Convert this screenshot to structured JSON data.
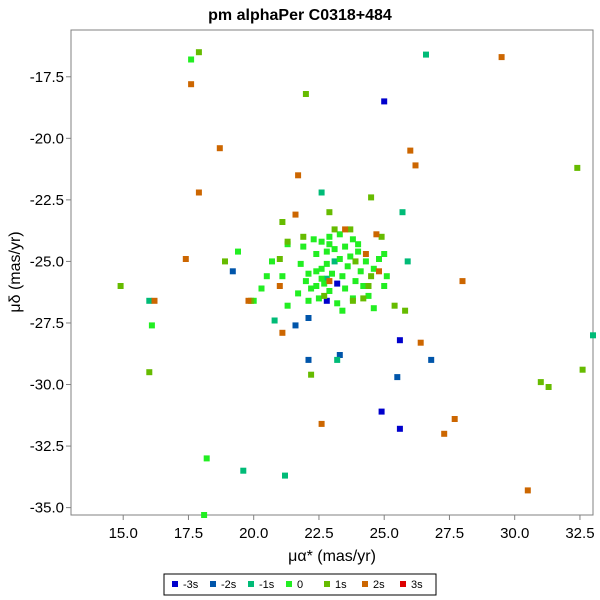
{
  "chart_data": {
    "type": "scatter",
    "title": "pm alphaPer  C0318+484",
    "xlabel": "μα* (mas/yr)",
    "ylabel": "μδ (mas/yr)",
    "xlim": [
      13.0,
      33.0
    ],
    "ylim": [
      -35.3,
      -15.6
    ],
    "xticks": [
      "15.0",
      "17.5",
      "20.0",
      "22.5",
      "25.0",
      "27.5",
      "30.0",
      "32.5"
    ],
    "xtick_values": [
      15.0,
      17.5,
      20.0,
      22.5,
      25.0,
      27.5,
      30.0,
      32.5
    ],
    "yticks": [
      "-17.5",
      "-20.0",
      "-22.5",
      "-25.0",
      "-27.5",
      "-30.0",
      "-32.5",
      "-35.0"
    ],
    "ytick_values": [
      -17.5,
      -20.0,
      -22.5,
      -25.0,
      -27.5,
      -30.0,
      -32.5,
      -35.0
    ],
    "grid": false,
    "legend_position": "bottom-center",
    "series": [
      {
        "name": "-3s",
        "color": "#0000cc",
        "points": [
          [
            25.0,
            -18.5
          ],
          [
            22.8,
            -26.6
          ],
          [
            23.2,
            -25.9
          ],
          [
            24.9,
            -31.1
          ],
          [
            25.6,
            -31.8
          ],
          [
            25.6,
            -28.2
          ]
        ]
      },
      {
        "name": "-2s",
        "color": "#0055aa",
        "points": [
          [
            19.2,
            -25.4
          ],
          [
            22.1,
            -27.3
          ],
          [
            22.1,
            -29.0
          ],
          [
            21.6,
            -27.6
          ],
          [
            23.3,
            -28.8
          ],
          [
            25.5,
            -29.7
          ],
          [
            26.8,
            -29.0
          ]
        ]
      },
      {
        "name": "-1s",
        "color": "#00bb77",
        "points": [
          [
            16.0,
            -26.6
          ],
          [
            19.6,
            -33.5
          ],
          [
            20.8,
            -27.4
          ],
          [
            21.2,
            -33.7
          ],
          [
            22.8,
            -25.7
          ],
          [
            22.6,
            -22.2
          ],
          [
            23.1,
            -25.0
          ],
          [
            25.7,
            -23.0
          ],
          [
            25.9,
            -25.0
          ],
          [
            26.6,
            -16.6
          ],
          [
            33.0,
            -28.0
          ],
          [
            23.2,
            -29.0
          ]
        ]
      },
      {
        "name": "0",
        "color": "#22ee22",
        "points": [
          [
            17.6,
            -16.8
          ],
          [
            16.1,
            -27.6
          ],
          [
            18.2,
            -33.0
          ],
          [
            18.1,
            -35.3
          ],
          [
            19.4,
            -24.6
          ],
          [
            20.0,
            -26.6
          ],
          [
            20.3,
            -26.1
          ],
          [
            20.5,
            -25.6
          ],
          [
            20.7,
            -25.0
          ],
          [
            21.3,
            -24.3
          ],
          [
            21.1,
            -25.6
          ],
          [
            21.3,
            -26.8
          ],
          [
            21.7,
            -26.3
          ],
          [
            21.8,
            -25.1
          ],
          [
            21.9,
            -24.4
          ],
          [
            22.0,
            -25.8
          ],
          [
            22.1,
            -25.5
          ],
          [
            22.1,
            -26.6
          ],
          [
            22.3,
            -24.1
          ],
          [
            22.4,
            -24.7
          ],
          [
            22.4,
            -25.4
          ],
          [
            22.4,
            -26.0
          ],
          [
            22.5,
            -26.5
          ],
          [
            22.6,
            -24.2
          ],
          [
            22.6,
            -25.3
          ],
          [
            22.7,
            -25.9
          ],
          [
            22.8,
            -24.6
          ],
          [
            22.8,
            -25.1
          ],
          [
            22.9,
            -26.2
          ],
          [
            22.9,
            -24.0
          ],
          [
            23.0,
            -25.5
          ],
          [
            23.1,
            -24.5
          ],
          [
            23.2,
            -26.7
          ],
          [
            23.3,
            -23.9
          ],
          [
            23.3,
            -24.9
          ],
          [
            23.4,
            -25.6
          ],
          [
            23.5,
            -26.1
          ],
          [
            23.5,
            -24.4
          ],
          [
            23.6,
            -25.2
          ],
          [
            23.7,
            -24.8
          ],
          [
            23.8,
            -26.5
          ],
          [
            23.9,
            -25.8
          ],
          [
            24.0,
            -24.3
          ],
          [
            24.1,
            -25.4
          ],
          [
            24.2,
            -26.0
          ],
          [
            24.3,
            -25.0
          ],
          [
            24.4,
            -26.4
          ],
          [
            24.6,
            -25.3
          ],
          [
            24.6,
            -26.9
          ],
          [
            24.8,
            -24.9
          ],
          [
            25.0,
            -26.0
          ],
          [
            25.1,
            -25.6
          ],
          [
            25.0,
            -24.7
          ],
          [
            22.9,
            -24.3
          ],
          [
            22.2,
            -26.1
          ],
          [
            23.4,
            -27.0
          ],
          [
            24.0,
            -24.6
          ],
          [
            22.6,
            -25.7
          ],
          [
            23.8,
            -24.1
          ]
        ]
      },
      {
        "name": "1s",
        "color": "#66bb00",
        "points": [
          [
            17.9,
            -16.5
          ],
          [
            22.0,
            -18.2
          ],
          [
            14.9,
            -26.0
          ],
          [
            16.0,
            -29.5
          ],
          [
            18.9,
            -25.0
          ],
          [
            19.9,
            -26.6
          ],
          [
            21.1,
            -23.4
          ],
          [
            21.3,
            -24.2
          ],
          [
            21.9,
            -24.0
          ],
          [
            22.7,
            -26.4
          ],
          [
            22.9,
            -23.0
          ],
          [
            23.1,
            -23.7
          ],
          [
            23.7,
            -23.7
          ],
          [
            23.8,
            -26.6
          ],
          [
            24.2,
            -26.5
          ],
          [
            24.4,
            -26.0
          ],
          [
            24.5,
            -22.4
          ],
          [
            24.5,
            -25.6
          ],
          [
            24.9,
            -24.0
          ],
          [
            25.4,
            -26.8
          ],
          [
            22.2,
            -29.6
          ],
          [
            31.0,
            -29.9
          ],
          [
            31.3,
            -30.1
          ],
          [
            32.4,
            -21.2
          ],
          [
            32.6,
            -29.4
          ],
          [
            25.8,
            -27.0
          ],
          [
            21.0,
            -24.9
          ],
          [
            23.9,
            -25.0
          ]
        ]
      },
      {
        "name": "2s",
        "color": "#cc6600",
        "points": [
          [
            17.6,
            -17.8
          ],
          [
            18.7,
            -20.4
          ],
          [
            17.9,
            -22.2
          ],
          [
            17.4,
            -24.9
          ],
          [
            16.2,
            -26.6
          ],
          [
            19.8,
            -26.6
          ],
          [
            21.1,
            -27.9
          ],
          [
            21.6,
            -23.1
          ],
          [
            21.7,
            -21.5
          ],
          [
            22.9,
            -25.8
          ],
          [
            22.6,
            -31.6
          ],
          [
            23.5,
            -23.7
          ],
          [
            24.7,
            -23.9
          ],
          [
            24.8,
            -25.4
          ],
          [
            26.0,
            -20.5
          ],
          [
            26.2,
            -21.1
          ],
          [
            26.4,
            -28.3
          ],
          [
            27.3,
            -32.0
          ],
          [
            27.7,
            -31.4
          ],
          [
            28.0,
            -25.8
          ],
          [
            29.5,
            -16.7
          ],
          [
            30.5,
            -34.3
          ],
          [
            21.0,
            -26.0
          ],
          [
            24.3,
            -24.7
          ]
        ]
      },
      {
        "name": "3s",
        "color": "#dd0000",
        "points": []
      }
    ]
  }
}
